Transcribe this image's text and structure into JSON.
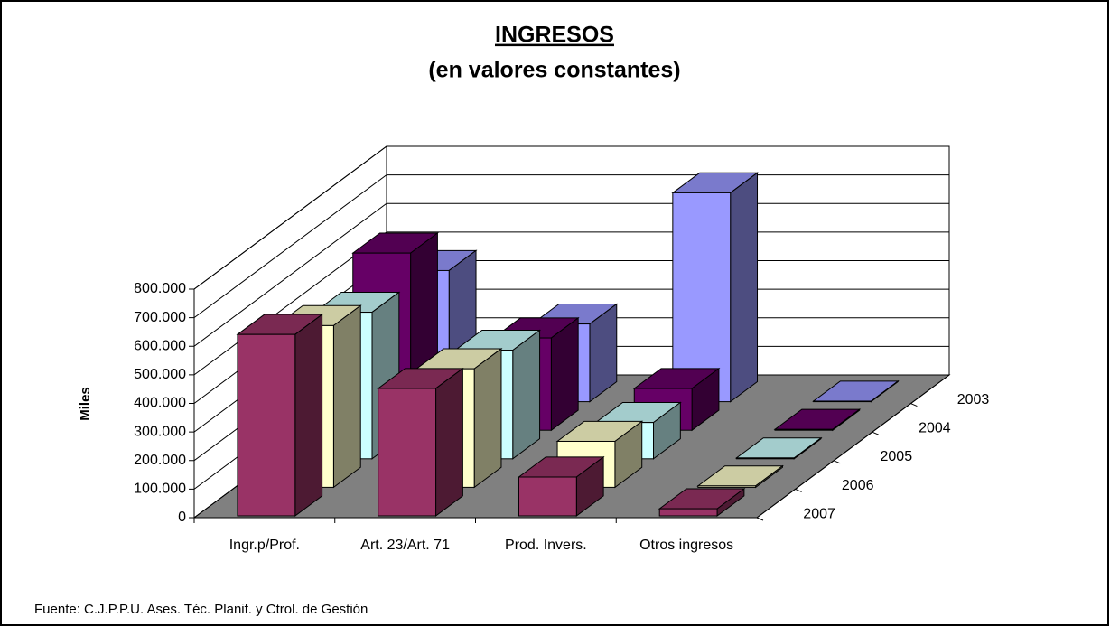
{
  "chart_data": {
    "type": "bar3d",
    "title": "INGRESOS",
    "subtitle": "(en valores constantes)",
    "y_label": "Miles",
    "source": "Fuente: C.J.P.P.U. Ases. Téc. Planif. y Ctrol. de Gestión",
    "categories": [
      "Ingr.p/Prof.",
      "Art. 23/Art. 71",
      "Prod. Invers.",
      "Otros ingresos"
    ],
    "series": [
      {
        "name": "2003",
        "color": "#9999ff",
        "values": [
          459000,
          272000,
          731000,
          2000
        ]
      },
      {
        "name": "2004",
        "color": "#660066",
        "values": [
          620000,
          323000,
          146000,
          3000
        ]
      },
      {
        "name": "2005",
        "color": "#ccffff",
        "values": [
          513000,
          380000,
          127000,
          3000
        ]
      },
      {
        "name": "2006",
        "color": "#ffffcc",
        "values": [
          566000,
          415000,
          161000,
          5000
        ]
      },
      {
        "name": "2007",
        "color": "#993366",
        "values": [
          635000,
          446000,
          136000,
          25000
        ]
      }
    ],
    "ylim": [
      0,
      800000
    ],
    "yticks": [
      0,
      {
        "value": 100000,
        "label": "100.000"
      },
      {
        "value": 200000,
        "label": "200.000"
      },
      {
        "value": 300000,
        "label": "300.000"
      },
      {
        "value": 400000,
        "label": "400.000"
      },
      {
        "value": 500000,
        "label": "500.000"
      },
      {
        "value": 600000,
        "label": "600.000"
      },
      {
        "value": 700000,
        "label": "700.000"
      },
      {
        "value": 800000,
        "label": "800.000"
      }
    ],
    "grid": true
  }
}
